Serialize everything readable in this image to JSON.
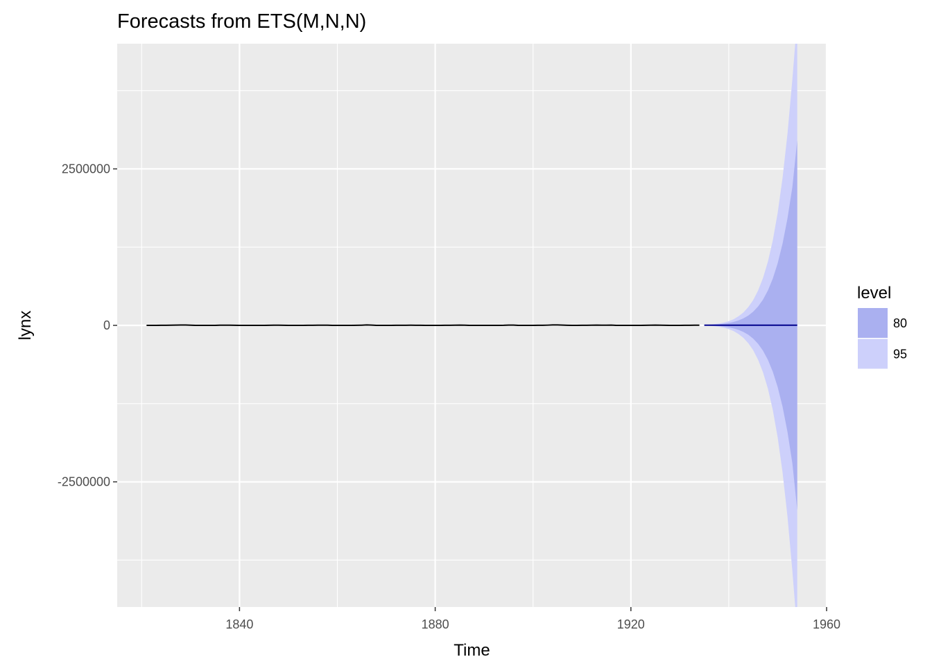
{
  "chart_data": {
    "type": "area",
    "title": "Forecasts from ETS(M,N,N)",
    "xlabel": "Time",
    "ylabel": "lynx",
    "xlim": [
      1815,
      1960
    ],
    "ylim": [
      -4500000,
      4500000
    ],
    "x_ticks": [
      1840,
      1880,
      1920,
      1960
    ],
    "x_tick_labels": [
      "1840",
      "1880",
      "1920",
      "1960"
    ],
    "y_ticks": [
      -2500000,
      0,
      2500000
    ],
    "y_tick_labels": [
      "-2500000",
      "0",
      "2500000"
    ],
    "grid": true,
    "legend": {
      "title": "level",
      "position": "right",
      "entries": [
        {
          "label": "80",
          "color": "#aab0f0"
        },
        {
          "label": "95",
          "color": "#cdd0fb"
        }
      ]
    },
    "colors": {
      "panel": "#ebebeb",
      "grid": "#ffffff",
      "history_line": "#000000",
      "forecast_line": "#00008b",
      "band80": "#aab0f0",
      "band95": "#cdd0fb"
    },
    "history": {
      "x": [
        1821,
        1822,
        1823,
        1824,
        1825,
        1826,
        1827,
        1828,
        1829,
        1830,
        1831,
        1832,
        1833,
        1834,
        1835,
        1836,
        1837,
        1838,
        1839,
        1840,
        1841,
        1842,
        1843,
        1844,
        1845,
        1846,
        1847,
        1848,
        1849,
        1850,
        1851,
        1852,
        1853,
        1854,
        1855,
        1856,
        1857,
        1858,
        1859,
        1860,
        1861,
        1862,
        1863,
        1864,
        1865,
        1866,
        1867,
        1868,
        1869,
        1870,
        1871,
        1872,
        1873,
        1874,
        1875,
        1876,
        1877,
        1878,
        1879,
        1880,
        1881,
        1882,
        1883,
        1884,
        1885,
        1886,
        1887,
        1888,
        1889,
        1890,
        1891,
        1892,
        1893,
        1894,
        1895,
        1896,
        1897,
        1898,
        1899,
        1900,
        1901,
        1902,
        1903,
        1904,
        1905,
        1906,
        1907,
        1908,
        1909,
        1910,
        1911,
        1912,
        1913,
        1914,
        1915,
        1916,
        1917,
        1918,
        1919,
        1920,
        1921,
        1922,
        1923,
        1924,
        1925,
        1926,
        1927,
        1928,
        1929,
        1930,
        1931,
        1932,
        1933,
        1934
      ],
      "y": [
        269,
        321,
        585,
        871,
        1475,
        2821,
        3928,
        5943,
        4950,
        2577,
        523,
        98,
        184,
        279,
        409,
        2285,
        2685,
        3409,
        1824,
        409,
        151,
        45,
        68,
        213,
        546,
        1033,
        2129,
        2536,
        957,
        361,
        377,
        225,
        360,
        731,
        1638,
        2725,
        2871,
        2119,
        684,
        299,
        236,
        245,
        552,
        1623,
        3311,
        6721,
        4254,
        687,
        255,
        473,
        358,
        784,
        1594,
        1676,
        2251,
        1426,
        756,
        299,
        201,
        229,
        469,
        736,
        2042,
        2811,
        4431,
        2511,
        389,
        73,
        39,
        49,
        59,
        188,
        377,
        1292,
        4031,
        3495,
        587,
        105,
        153,
        387,
        758,
        1307,
        3465,
        6991,
        6313,
        3794,
        1836,
        345,
        382,
        808,
        1388,
        2713,
        3800,
        3091,
        2985,
        3790,
        674,
        81,
        80,
        108,
        229,
        399,
        1132,
        2432,
        3574,
        2935,
        1537,
        529,
        485,
        662,
        1000,
        1590,
        2657,
        3396
      ]
    },
    "forecast": {
      "x": [
        1935,
        1936,
        1937,
        1938,
        1939,
        1940,
        1941,
        1942,
        1943,
        1944,
        1945,
        1946,
        1947,
        1948,
        1949,
        1950,
        1951,
        1952,
        1953,
        1954
      ],
      "mean": [
        3396,
        3396,
        3396,
        3396,
        3396,
        3396,
        3396,
        3396,
        3396,
        3396,
        3396,
        3396,
        3396,
        3396,
        3396,
        3396,
        3396,
        3396,
        3396,
        3396
      ],
      "lo80": [
        1100,
        -2300,
        -5800,
        -11000,
        -19000,
        -31000,
        -48000,
        -72000,
        -105000,
        -150000,
        -212000,
        -295000,
        -405000,
        -550000,
        -740000,
        -985000,
        -1300000,
        -1700000,
        -2200000,
        -2950000
      ],
      "hi80": [
        5700,
        9100,
        12600,
        17800,
        25800,
        37800,
        54800,
        78800,
        111800,
        156800,
        218800,
        301800,
        411800,
        556800,
        746800,
        991800,
        1306800,
        1706800,
        2206800,
        2956800
      ],
      "lo95": [
        -100,
        -5000,
        -12000,
        -22000,
        -37000,
        -60000,
        -92000,
        -138000,
        -200000,
        -285000,
        -398000,
        -550000,
        -750000,
        -1010000,
        -1350000,
        -1790000,
        -2350000,
        -3050000,
        -3920000,
        -4900000
      ],
      "hi95": [
        6900,
        11800,
        18800,
        28800,
        43800,
        66800,
        98800,
        144800,
        206800,
        291800,
        404800,
        556800,
        756800,
        1016800,
        1356800,
        1796800,
        2356800,
        3056800,
        3926800,
        4900000
      ]
    }
  }
}
